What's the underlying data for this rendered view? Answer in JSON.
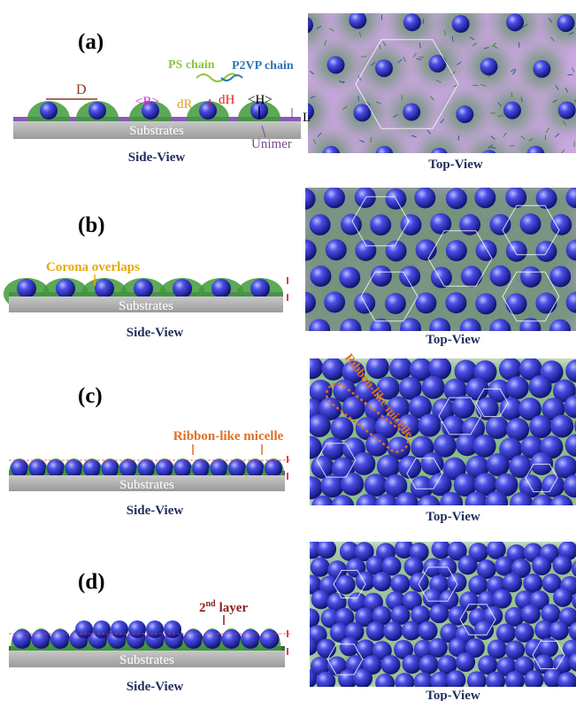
{
  "panels": [
    {
      "label": "(a)",
      "substrate": "Substrates",
      "side_view": "Side-View",
      "top_view": "Top-View",
      "annotations": {
        "ps_chain": "PS chain",
        "p2vp_chain": "P2VP chain",
        "D": "D",
        "R": "<R>",
        "dR": "dR",
        "dH": "dH",
        "H": "<H>",
        "L": "L",
        "unimer": "Unimer"
      }
    },
    {
      "label": "(b)",
      "substrate": "Substrates",
      "side_view": "Side-View",
      "top_view": "Top-View",
      "annotations": {
        "corona": "Corona overlaps"
      }
    },
    {
      "label": "(c)",
      "substrate": "Substrates",
      "side_view": "Side-View",
      "top_view": "Top-View",
      "annotations": {
        "ribbon": "Ribbon-like micelle",
        "ribbon_top": "Ribbon-like micelle"
      }
    },
    {
      "label": "(d)",
      "substrate": "Substrates",
      "side_view": "Side-View",
      "top_view": "Top-View",
      "annotations": {
        "layer": {
          "number": "2",
          "suffix": "nd",
          "rest": "layer"
        }
      }
    }
  ]
}
